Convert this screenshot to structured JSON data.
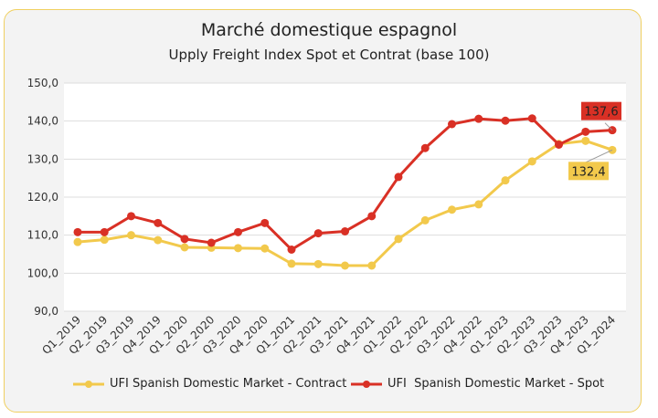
{
  "chart_data": {
    "type": "line",
    "title": "Marché domestique espagnol",
    "subtitle": "Upply Freight Index Spot et Contrat (base 100)",
    "categories": [
      "Q1_2019",
      "Q2_2019",
      "Q3_2019",
      "Q4_2019",
      "Q1_2020",
      "Q2_2020",
      "Q3_2020",
      "Q4_2020",
      "Q1_2021",
      "Q2_2021",
      "Q3_2021",
      "Q4_2021",
      "Q1_2022",
      "Q2_2022",
      "Q3_2022",
      "Q4_2022",
      "Q1_2023",
      "Q2_2023",
      "Q3_2023",
      "Q4_2023",
      "Q1_2024"
    ],
    "series": [
      {
        "name": "UFI Spanish Domestic Market - Contract",
        "color": "#f2c94c",
        "values": [
          108.2,
          108.8,
          110.0,
          108.7,
          106.8,
          106.7,
          106.6,
          106.5,
          102.5,
          102.4,
          102.0,
          102.0,
          109.0,
          113.9,
          116.7,
          118.1,
          124.4,
          129.4,
          134.0,
          134.8,
          132.4
        ],
        "last_label": "132,4"
      },
      {
        "name": "UFI  Spanish Domestic Market - Spot",
        "color": "#d93025",
        "values": [
          110.8,
          110.8,
          115.0,
          113.2,
          109.0,
          108.0,
          110.8,
          113.2,
          106.2,
          110.5,
          111.0,
          115.0,
          125.3,
          132.9,
          139.2,
          140.6,
          140.1,
          140.7,
          133.8,
          137.2,
          137.6
        ],
        "last_label": "137,6"
      }
    ],
    "ylim": [
      90,
      150
    ],
    "yticks": [
      "90,0",
      "100,0",
      "110,0",
      "120,0",
      "130,0",
      "140,0",
      "150,0"
    ],
    "grid": true,
    "legend": "bottom"
  }
}
